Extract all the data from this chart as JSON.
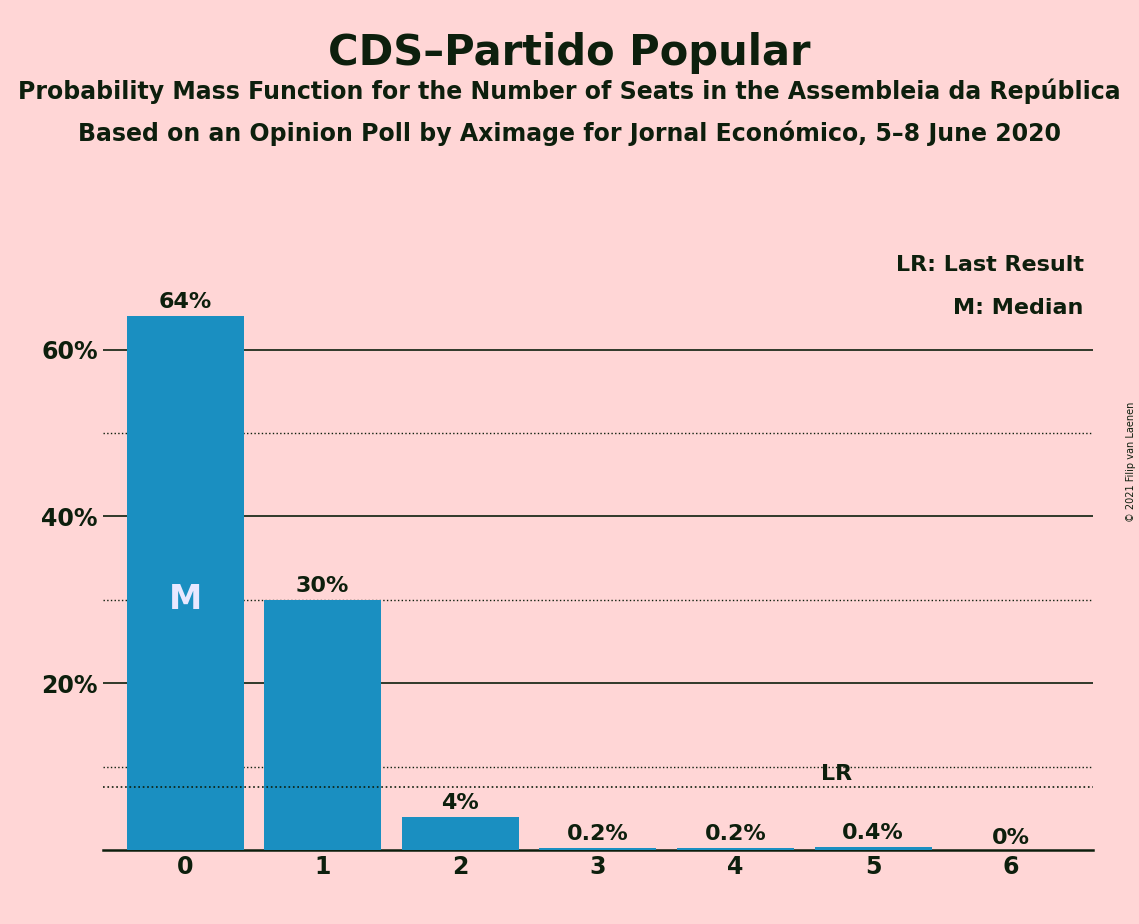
{
  "title": "CDS–Partido Popular",
  "subtitle1": "Probability Mass Function for the Number of Seats in the Assembleia da República",
  "subtitle2": "Based on an Opinion Poll by Aximage for Jornal Económico, 5–8 June 2020",
  "copyright": "© 2021 Filip van Laenen",
  "categories": [
    0,
    1,
    2,
    3,
    4,
    5,
    6
  ],
  "values": [
    0.64,
    0.3,
    0.04,
    0.002,
    0.002,
    0.004,
    0.0
  ],
  "bar_color": "#1a8fc1",
  "background_color": "#ffd6d6",
  "median_seat": 0,
  "lr_value": 0.076,
  "legend_lr": "LR: Last Result",
  "legend_m": "M: Median",
  "solid_gridlines": [
    0.2,
    0.4,
    0.6
  ],
  "dotted_gridlines": [
    0.1,
    0.3,
    0.5
  ],
  "yticks": [
    0.2,
    0.4,
    0.6
  ],
  "ytick_labels": [
    "20%",
    "40%",
    "60%"
  ],
  "ylim": [
    0,
    0.72
  ],
  "bar_labels": [
    "64%",
    "30%",
    "4%",
    "0.2%",
    "0.2%",
    "0.4%",
    "0%"
  ],
  "title_fontsize": 30,
  "subtitle_fontsize": 17,
  "label_fontsize": 16,
  "axis_fontsize": 17,
  "text_color": "#0d1f0d",
  "white_label_color": "#e8e8ff"
}
